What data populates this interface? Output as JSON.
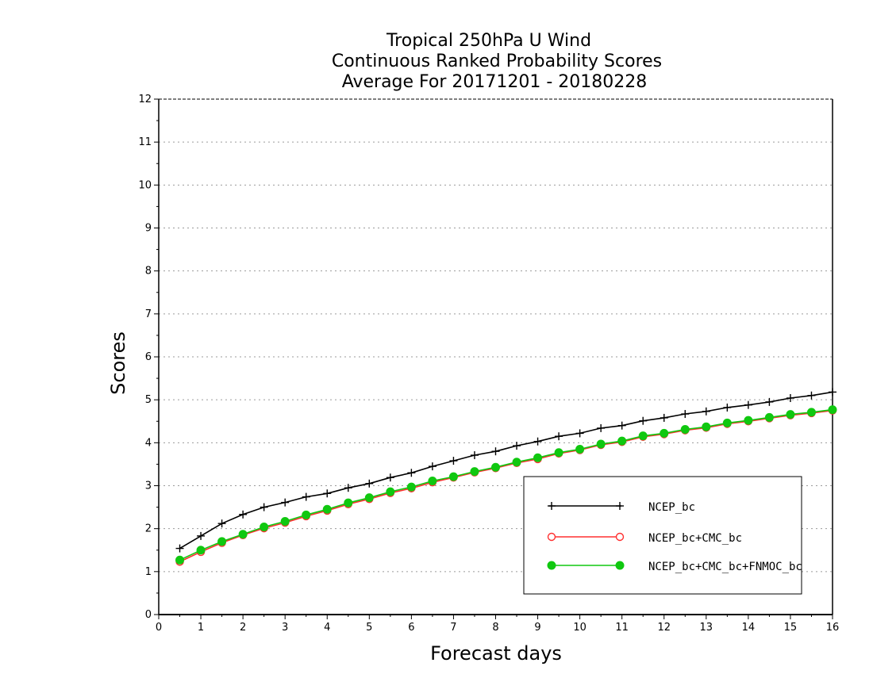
{
  "chart_data": {
    "type": "line",
    "title_lines": [
      "Tropical 250hPa U Wind",
      "Continuous Ranked Probability Scores",
      "Average For 20171201 - 20180228"
    ],
    "xlabel": "Forecast days",
    "ylabel": "Scores",
    "xlim": [
      0,
      16
    ],
    "ylim": [
      0,
      12
    ],
    "xticks": [
      "0",
      "1",
      "2",
      "3",
      "4",
      "5",
      "6",
      "7",
      "8",
      "9",
      "10",
      "11",
      "12",
      "13",
      "14",
      "15",
      "16"
    ],
    "yticks": [
      "0",
      "1",
      "2",
      "3",
      "4",
      "5",
      "6",
      "7",
      "8",
      "9",
      "10",
      "11",
      "12"
    ],
    "grid": "horizontal-dotted",
    "legend_position": "bottom-right",
    "x": [
      0.5,
      1,
      1.5,
      2,
      2.5,
      3,
      3.5,
      4,
      4.5,
      5,
      5.5,
      6,
      6.5,
      7,
      7.5,
      8,
      8.5,
      9,
      9.5,
      10,
      10.5,
      11,
      11.5,
      12,
      12.5,
      13,
      13.5,
      14,
      14.5,
      15,
      15.5,
      16
    ],
    "series": [
      {
        "name": "NCEP_bc",
        "color": "#000000",
        "marker": "plus",
        "values": [
          1.54,
          1.83,
          2.12,
          2.33,
          2.5,
          2.61,
          2.74,
          2.82,
          2.95,
          3.05,
          3.19,
          3.3,
          3.45,
          3.58,
          3.71,
          3.8,
          3.93,
          4.03,
          4.15,
          4.22,
          4.34,
          4.4,
          4.51,
          4.58,
          4.67,
          4.73,
          4.82,
          4.88,
          4.95,
          5.04,
          5.1,
          5.18
        ]
      },
      {
        "name": "NCEP_bc+CMC_bc",
        "color": "#ff3030",
        "marker": "open-circle",
        "values": [
          1.23,
          1.46,
          1.67,
          1.85,
          2.01,
          2.14,
          2.29,
          2.42,
          2.57,
          2.69,
          2.83,
          2.94,
          3.08,
          3.19,
          3.31,
          3.41,
          3.53,
          3.62,
          3.75,
          3.83,
          3.95,
          4.02,
          4.14,
          4.2,
          4.29,
          4.35,
          4.44,
          4.5,
          4.57,
          4.64,
          4.69,
          4.75
        ]
      },
      {
        "name": "NCEP_bc+CMC_bc+FNMOC_bc",
        "color": "#10c810",
        "marker": "filled-circle",
        "values": [
          1.27,
          1.5,
          1.7,
          1.87,
          2.04,
          2.17,
          2.32,
          2.45,
          2.6,
          2.72,
          2.86,
          2.97,
          3.11,
          3.21,
          3.33,
          3.43,
          3.55,
          3.65,
          3.77,
          3.85,
          3.97,
          4.04,
          4.16,
          4.22,
          4.31,
          4.37,
          4.46,
          4.52,
          4.59,
          4.66,
          4.71,
          4.77
        ]
      }
    ]
  }
}
